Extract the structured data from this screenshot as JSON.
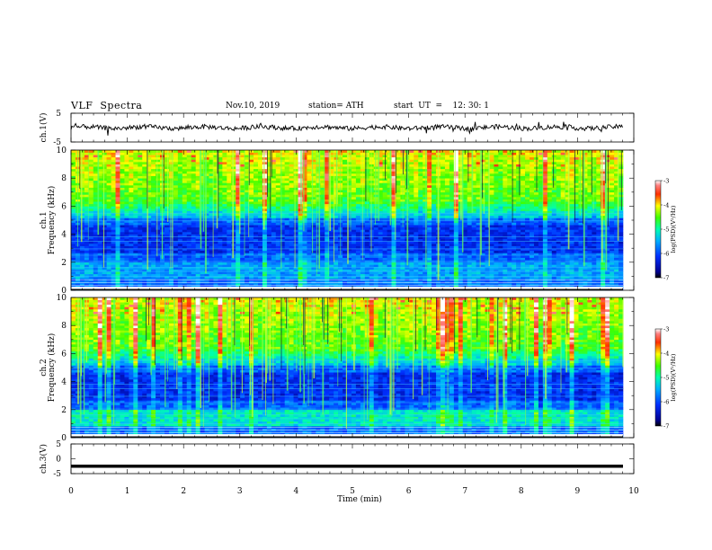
{
  "header": {
    "title": "VLF  Spectra",
    "date": "Nov.10, 2019",
    "station": "station= ATH",
    "start": "start  UT  =    12: 30: 1"
  },
  "chart_data": [
    {
      "type": "line",
      "panel": "ch1-waveform",
      "ylabel": "ch.1(V)",
      "ylim": [
        -5,
        5
      ],
      "yticks": [
        "5",
        "-5"
      ],
      "xlim": [
        0,
        10
      ],
      "description_values": "noisy waveform centered near 0 V, amplitude about ±1 V, with occasional spikes to about ±2 V"
    },
    {
      "type": "heatmap",
      "panel": "ch1-spectrogram",
      "ylabel": "Frequency  (kHz)",
      "panel_label": "ch.1",
      "ylim": [
        0,
        10
      ],
      "yticks": [
        "0",
        "2",
        "4",
        "6",
        "8",
        "10"
      ],
      "xlim": [
        0,
        10
      ],
      "colorbar": {
        "label": "log(PSD)(V²/Hz)",
        "range": [
          -7,
          -3
        ],
        "ticks": [
          "-3",
          "-4",
          "-5",
          "-6",
          "-7"
        ]
      }
    },
    {
      "type": "heatmap",
      "panel": "ch2-spectrogram",
      "ylabel": "Frequency  (kHz)",
      "panel_label": "ch.2",
      "ylim": [
        0,
        10
      ],
      "yticks": [
        "0",
        "2",
        "4",
        "6",
        "8",
        "10"
      ],
      "xlim": [
        0,
        10
      ],
      "colorbar": {
        "label": "log(PSD)(V²/Hz)",
        "range": [
          -7,
          -3
        ],
        "ticks": [
          "-3",
          "-4",
          "-5",
          "-6",
          "-7"
        ]
      }
    },
    {
      "type": "line",
      "panel": "ch3-waveform",
      "ylabel": "ch.3(V)",
      "ylim": [
        -5,
        5
      ],
      "yticks": [
        "5",
        "0",
        "-5"
      ],
      "xlim": [
        0,
        10
      ],
      "xlabel": "Time  (min)",
      "xticks": [
        "0",
        "1",
        "2",
        "3",
        "4",
        "5",
        "6",
        "7",
        "8",
        "9",
        "10"
      ],
      "description_values": "thick flat trace near -2.5 V"
    }
  ]
}
